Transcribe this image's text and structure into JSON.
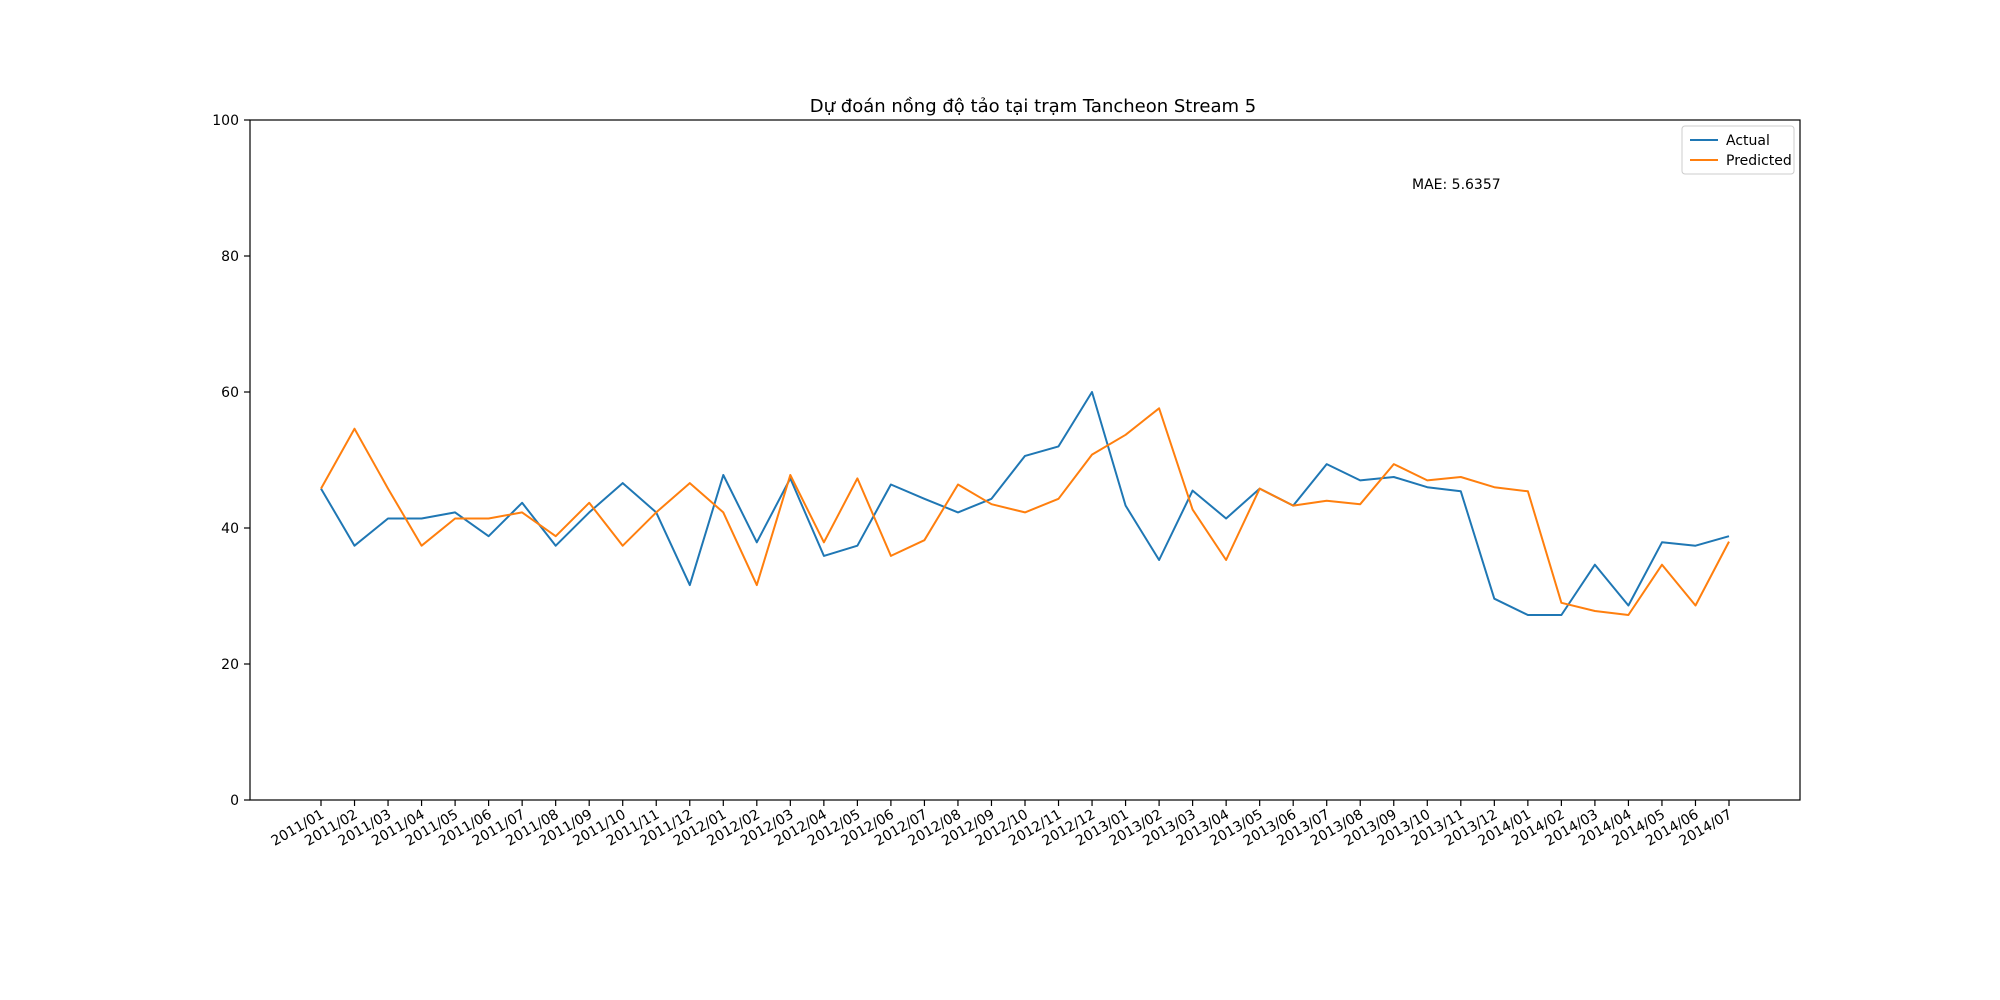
{
  "chart_data": {
    "type": "line",
    "title": "Dự đoán nồng độ tảo tại trạm Tancheon Stream 5",
    "xlabel": "",
    "ylabel": "",
    "ylim": [
      0,
      100
    ],
    "yticks": [
      0,
      20,
      40,
      60,
      80,
      100
    ],
    "grid": false,
    "legend_position": "top-right",
    "annotation": "MAE: 5.6357",
    "x": [
      "2011/01",
      "2011/02",
      "2011/03",
      "2011/04",
      "2011/05",
      "2011/06",
      "2011/07",
      "2011/08",
      "2011/09",
      "2011/10",
      "2011/11",
      "2011/12",
      "2012/01",
      "2012/02",
      "2012/03",
      "2012/04",
      "2012/05",
      "2012/06",
      "2012/07",
      "2012/08",
      "2012/09",
      "2012/10",
      "2012/11",
      "2012/12",
      "2013/01",
      "2013/02",
      "2013/03",
      "2013/04",
      "2013/05",
      "2013/06",
      "2013/07",
      "2013/08",
      "2013/09",
      "2013/10",
      "2013/11",
      "2013/12",
      "2014/01",
      "2014/02",
      "2014/03",
      "2014/04",
      "2014/05",
      "2014/06",
      "2014/07"
    ],
    "series": [
      {
        "name": "Actual",
        "color": "#1f77b4",
        "values": [
          45.8,
          37.4,
          41.4,
          41.4,
          42.3,
          38.8,
          43.7,
          37.4,
          42.3,
          46.6,
          42.3,
          31.6,
          47.8,
          37.9,
          47.3,
          35.9,
          37.4,
          46.4,
          44.3,
          42.3,
          44.3,
          50.6,
          52.0,
          60.0,
          43.3,
          35.3,
          45.5,
          41.4,
          45.8,
          43.3,
          49.4,
          47.0,
          47.5,
          46.0,
          45.4,
          29.6,
          27.2,
          27.2,
          34.6,
          28.6,
          37.9,
          37.4,
          38.8
        ]
      },
      {
        "name": "Predicted",
        "color": "#ff7f0e",
        "values": [
          45.8,
          54.6,
          45.8,
          37.4,
          41.4,
          41.4,
          42.3,
          38.8,
          43.7,
          37.4,
          42.3,
          46.6,
          42.3,
          31.6,
          47.8,
          37.9,
          47.3,
          35.9,
          38.2,
          46.4,
          43.5,
          42.3,
          44.3,
          50.8,
          53.7,
          57.6,
          42.7,
          35.3,
          45.8,
          43.3,
          44.0,
          43.5,
          49.4,
          47.0,
          47.5,
          46.0,
          45.4,
          29.0,
          27.8,
          27.2,
          34.6,
          28.6,
          38.0
        ]
      }
    ]
  }
}
